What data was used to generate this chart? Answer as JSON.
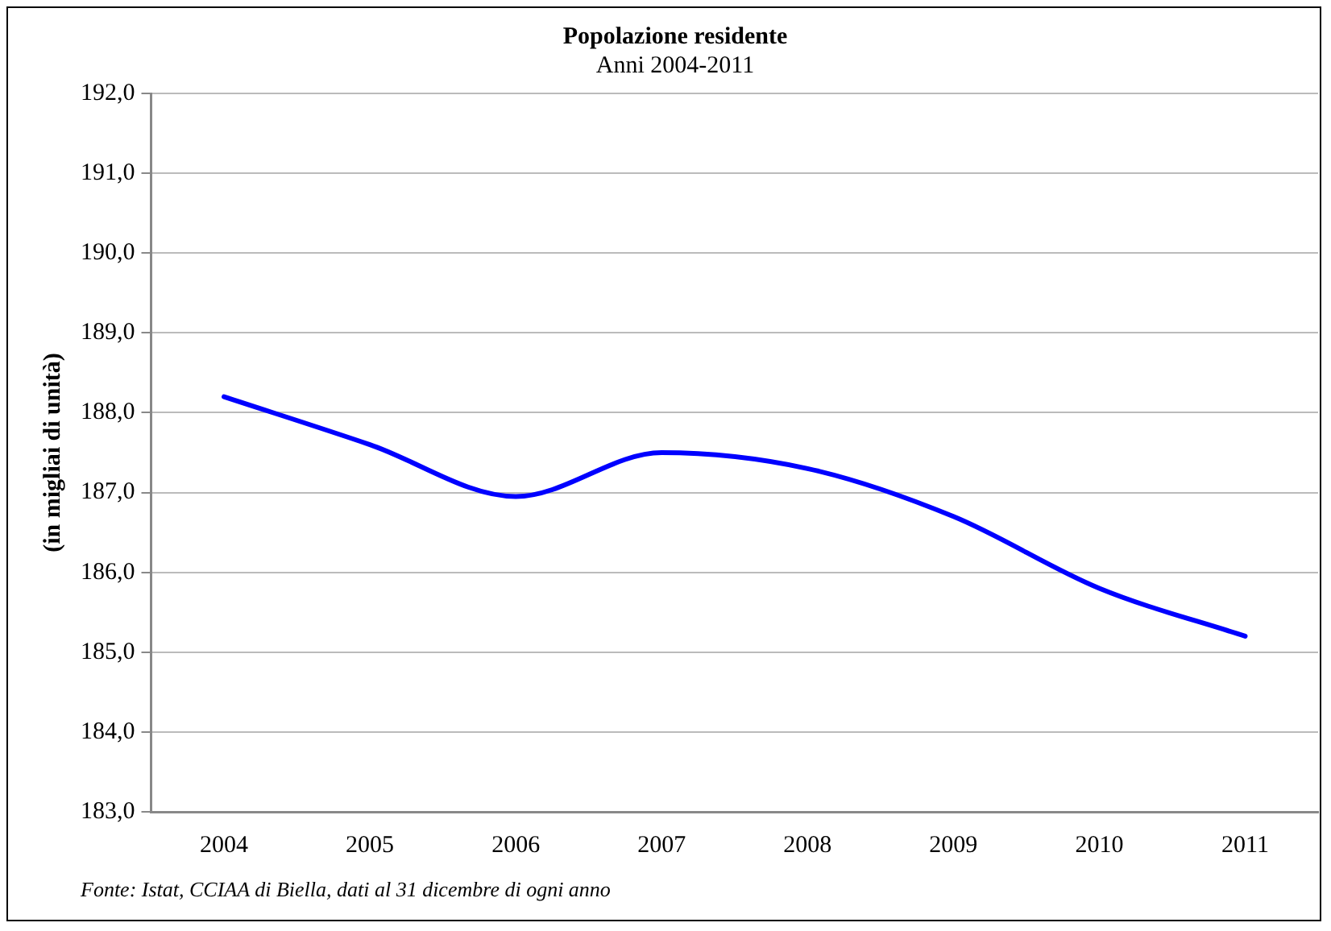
{
  "chart_data": {
    "type": "line",
    "title": "Popolazione residente",
    "subtitle": "Anni 2004-2011",
    "ylabel": "(in migliai di unità)",
    "categories": [
      "2004",
      "2005",
      "2006",
      "2007",
      "2008",
      "2009",
      "2010",
      "2011"
    ],
    "series": [
      {
        "color": "#0000ff",
        "values": [
          188.2,
          187.6,
          186.95,
          187.5,
          187.3,
          186.7,
          185.8,
          185.2
        ]
      }
    ],
    "ylim": [
      183,
      192
    ],
    "yticks": [
      {
        "value": 183,
        "label": "183,0"
      },
      {
        "value": 184,
        "label": "184,0"
      },
      {
        "value": 185,
        "label": "185,0"
      },
      {
        "value": 186,
        "label": "186,0"
      },
      {
        "value": 187,
        "label": "187,0"
      },
      {
        "value": 188,
        "label": "188,0"
      },
      {
        "value": 189,
        "label": "189,0"
      },
      {
        "value": 190,
        "label": "190,0"
      },
      {
        "value": 191,
        "label": "191,0"
      },
      {
        "value": 192,
        "label": "192,0"
      }
    ],
    "grid": "y",
    "legend": false,
    "marker": "none",
    "line_style": "solid",
    "annotations": [
      "Fonte: Istat, CCIAA di Biella, dati al 31 dicembre di ogni anno"
    ]
  }
}
